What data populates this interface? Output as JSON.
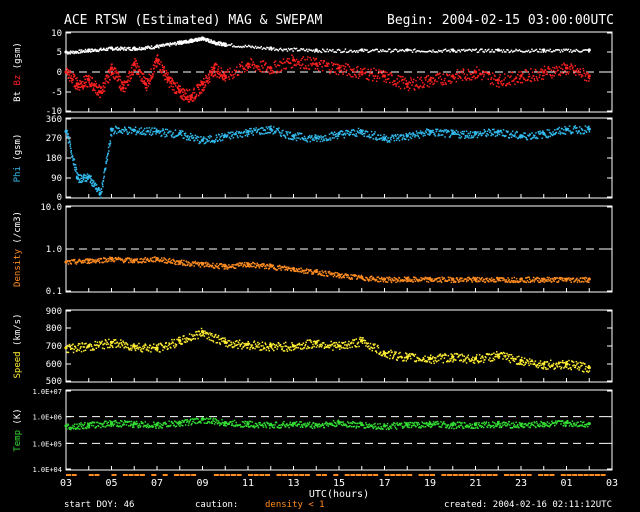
{
  "header": {
    "title": "ACE RTSW (Estimated) MAG & SWEPAM",
    "begin": "Begin: 2004-02-15 03:00:00UTC"
  },
  "footer": {
    "start_doy": "start DOY:  46",
    "caution_label": "caution:",
    "caution_note": "density < 1",
    "created": "created: 2004-02-16 02:11:12UTC"
  },
  "colors": {
    "background": "#000000",
    "axes": "#ffffff",
    "bt": "#ffffff",
    "bz": "#ff2020",
    "phi": "#33bbee",
    "density": "#ff8c20",
    "speed": "#ffee33",
    "temp": "#33dd33",
    "caution": "#ff8c20"
  },
  "chart_data": {
    "type": "scatter",
    "x_axis": {
      "label": "UTC(hours)",
      "range": [
        3,
        27
      ],
      "tick_labels": [
        "03",
        "05",
        "07",
        "09",
        "11",
        "13",
        "15",
        "17",
        "19",
        "21",
        "23",
        "01",
        "03"
      ]
    },
    "panels": [
      {
        "id": "mag",
        "ylabel_parts": [
          "Bt",
          "Bz",
          "(gsm)"
        ],
        "scale": "linear",
        "ylim": [
          -10,
          10
        ],
        "y_ticks": [
          "10",
          "5",
          "0",
          "-5",
          "-10"
        ],
        "dashed_lines": [
          0
        ],
        "series": [
          {
            "name": "Bt",
            "color_key": "bt",
            "x": [
              3,
              4,
              5,
              6,
              7,
              8,
              8.5,
              9,
              9.5,
              10,
              12,
              14,
              16,
              18,
              20,
              22,
              24,
              26
            ],
            "y": [
              5,
              5.5,
              6,
              6,
              6.5,
              7.5,
              8,
              8.5,
              7.5,
              7,
              6,
              5.5,
              5.5,
              5.5,
              5.5,
              5.5,
              5.5,
              5.5
            ]
          },
          {
            "name": "Bz",
            "color_key": "bz",
            "x": [
              3,
              3.5,
              4,
              4.5,
              5,
              5.5,
              6,
              6.5,
              7,
              7.5,
              8,
              8.5,
              9,
              9.5,
              10,
              11,
              12,
              13,
              14,
              15,
              16,
              17,
              18,
              19,
              20,
              21,
              22,
              23,
              24,
              25,
              26
            ],
            "y": [
              0,
              -3,
              -2,
              -5,
              1,
              -4,
              2,
              -3,
              3,
              -2,
              -5,
              -6,
              -3,
              1,
              -1,
              2,
              1,
              3,
              2,
              1,
              0,
              -1,
              -3,
              -2,
              -1,
              0,
              -2,
              -1,
              0,
              1,
              -1
            ]
          }
        ]
      },
      {
        "id": "phi",
        "ylabel_parts": [
          "Phi",
          "(gsm)"
        ],
        "scale": "linear",
        "ylim": [
          0,
          360
        ],
        "y_ticks": [
          "360",
          "270",
          "180",
          "90",
          "0"
        ],
        "series": [
          {
            "name": "Phi",
            "color_key": "phi",
            "x": [
              3,
              3.5,
              4,
              4.5,
              5,
              6,
              7,
              8,
              9,
              10,
              11,
              12,
              13,
              14,
              15,
              16,
              17,
              18,
              19,
              20,
              21,
              22,
              23,
              24,
              25,
              26
            ],
            "y": [
              300,
              90,
              95,
              20,
              310,
              305,
              300,
              290,
              260,
              280,
              300,
              310,
              280,
              270,
              290,
              300,
              270,
              280,
              300,
              290,
              290,
              300,
              280,
              290,
              310,
              310
            ]
          }
        ]
      },
      {
        "id": "density",
        "ylabel_parts": [
          "Density",
          "(/cm3)"
        ],
        "scale": "log",
        "ylim": [
          0.1,
          10
        ],
        "y_ticks": [
          "10.0",
          "1.0",
          "0.1"
        ],
        "dashed_lines": [
          1
        ],
        "series": [
          {
            "name": "Density",
            "color_key": "density",
            "x": [
              3,
              4,
              5,
              6,
              7,
              8,
              9,
              10,
              11,
              12,
              13,
              14,
              15,
              16,
              17,
              18,
              19,
              20,
              21,
              22,
              23,
              24,
              25,
              26
            ],
            "y": [
              0.5,
              0.55,
              0.6,
              0.55,
              0.6,
              0.5,
              0.45,
              0.4,
              0.45,
              0.4,
              0.35,
              0.3,
              0.25,
              0.22,
              0.2,
              0.2,
              0.2,
              0.2,
              0.2,
              0.2,
              0.2,
              0.2,
              0.2,
              0.2
            ]
          }
        ]
      },
      {
        "id": "speed",
        "ylabel_parts": [
          "Speed",
          "(km/s)"
        ],
        "scale": "linear",
        "ylim": [
          500,
          900
        ],
        "y_ticks": [
          "900",
          "800",
          "700",
          "600",
          "500"
        ],
        "series": [
          {
            "name": "Speed",
            "color_key": "speed",
            "x": [
              3,
              4,
              5,
              6,
              7,
              8,
              9,
              10,
              11,
              12,
              13,
              14,
              15,
              16,
              17,
              18,
              19,
              20,
              21,
              22,
              23,
              24,
              25,
              26
            ],
            "y": [
              690,
              700,
              720,
              700,
              690,
              730,
              780,
              720,
              710,
              700,
              700,
              720,
              700,
              730,
              660,
              640,
              630,
              640,
              630,
              650,
              620,
              600,
              600,
              580
            ]
          }
        ]
      },
      {
        "id": "temp",
        "ylabel_parts": [
          "Temp",
          "(K)"
        ],
        "scale": "log",
        "ylim": [
          10000,
          10000000
        ],
        "y_ticks": [
          "1.0E+07",
          "1.0E+06",
          "1.0E+05",
          "1.0E+04"
        ],
        "dashed_lines": [
          1000000,
          100000
        ],
        "series": [
          {
            "name": "Temp",
            "color_key": "temp",
            "x": [
              3,
              4,
              5,
              6,
              7,
              8,
              9,
              10,
              11,
              12,
              13,
              14,
              15,
              16,
              17,
              18,
              19,
              20,
              21,
              22,
              23,
              24,
              25,
              26
            ],
            "y": [
              450000,
              500000,
              600000,
              550000,
              500000,
              600000,
              800000,
              600000,
              550000,
              500000,
              550000,
              500000,
              600000,
              500000,
              450000,
              500000,
              550000,
              500000,
              500000,
              550000,
              500000,
              550000,
              600000,
              550000
            ]
          }
        ]
      }
    ]
  }
}
